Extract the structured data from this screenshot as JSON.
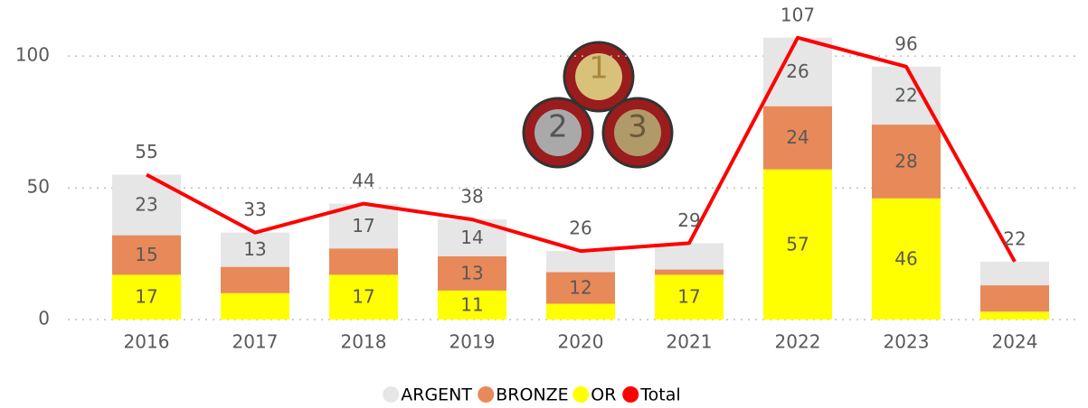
{
  "chart_data": {
    "type": "stacked-bar-line",
    "categories": [
      "2016",
      "2017",
      "2018",
      "2019",
      "2020",
      "2021",
      "2022",
      "2023",
      "2024"
    ],
    "series": [
      {
        "name": "ARGENT",
        "color": "#e6e6e6",
        "values": [
          23,
          13,
          17,
          14,
          8,
          10,
          26,
          22,
          9
        ],
        "value_labels": [
          "23",
          "13",
          "17",
          "14",
          null,
          null,
          "26",
          "22",
          null
        ]
      },
      {
        "name": "BRONZE",
        "color": "#e8895a",
        "values": [
          15,
          10,
          10,
          13,
          12,
          2,
          24,
          28,
          10
        ],
        "value_labels": [
          "15",
          null,
          null,
          "13",
          "12",
          null,
          "24",
          "28",
          null
        ]
      },
      {
        "name": "OR",
        "color": "#ffff00",
        "values": [
          17,
          10,
          17,
          11,
          6,
          17,
          57,
          46,
          3
        ],
        "value_labels": [
          "17",
          null,
          "17",
          "11",
          null,
          "17",
          "57",
          "46",
          null
        ]
      },
      {
        "name": "Total",
        "color": "#ff0000",
        "values": [
          55,
          33,
          44,
          38,
          26,
          29,
          107,
          96,
          22
        ]
      }
    ],
    "ylim": [
      0,
      110
    ],
    "yticks": [
      0,
      50,
      100
    ],
    "grid": true
  }
}
